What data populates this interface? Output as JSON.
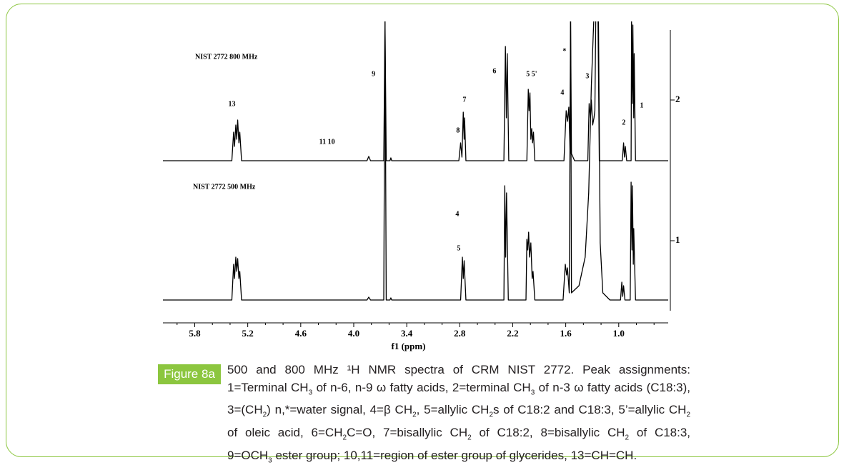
{
  "chart_data": [
    {
      "type": "line",
      "title": "NIST 2772 800 MHz",
      "trace_label": "2",
      "color": "#000000",
      "xlim": [
        6.16,
        0.44
      ],
      "ylim": [
        0,
        195
      ],
      "x": [
        6.16,
        5.38,
        5.36,
        5.35,
        5.335,
        5.325,
        5.314,
        5.3,
        5.29,
        5.27,
        3.85,
        3.83,
        3.81,
        3.66,
        3.646,
        3.632,
        3.59,
        3.58,
        3.57,
        2.81,
        2.79,
        2.775,
        2.76,
        2.75,
        2.745,
        2.73,
        2.3,
        2.283,
        2.272,
        2.262,
        2.245,
        2.04,
        2.024,
        2.015,
        2.005,
        1.995,
        1.985,
        1.975,
        1.965,
        1.95,
        1.62,
        1.595,
        1.58,
        1.565,
        1.55,
        1.545,
        1.535,
        1.5,
        1.35,
        1.335,
        1.32,
        1.31,
        1.295,
        1.28,
        1.27,
        1.26,
        1.235,
        1.22,
        0.96,
        0.945,
        0.935,
        0.925,
        0.91,
        0.86,
        0.855,
        0.845,
        0.84,
        0.83,
        0.825,
        0.81,
        0.44
      ],
      "values": [
        0,
        0,
        40,
        20,
        50,
        30,
        57,
        25,
        40,
        0,
        0,
        6,
        0,
        0,
        200,
        0,
        0,
        4,
        0,
        0,
        25,
        5,
        68,
        30,
        60,
        0,
        0,
        160,
        60,
        150,
        0,
        0,
        100,
        70,
        95,
        30,
        45,
        25,
        40,
        0,
        0,
        70,
        55,
        75,
        10,
        200,
        10,
        0,
        0,
        80,
        60,
        85,
        50,
        60,
        70,
        200,
        200,
        0,
        0,
        25,
        5,
        20,
        0,
        0,
        195,
        80,
        190,
        60,
        150,
        0,
        0
      ],
      "annotations": [
        {
          "text": "13",
          "x": 5.379,
          "y": 79
        },
        {
          "text": "11 10",
          "x": 4.302,
          "y": 26
        },
        {
          "text": "9",
          "x": 3.776,
          "y": 121
        },
        {
          "text": "7",
          "x": 2.747,
          "y": 85
        },
        {
          "text": "8",
          "x": 2.82,
          "y": 42
        },
        {
          "text": "6",
          "x": 2.407,
          "y": 125
        },
        {
          "text": "5 5'",
          "x": 1.986,
          "y": 121
        },
        {
          "text": "*",
          "x": 1.614,
          "y": 153
        },
        {
          "text": "4",
          "x": 1.638,
          "y": 95
        },
        {
          "text": "3",
          "x": 1.355,
          "y": 118
        },
        {
          "text": "2",
          "x": 0.943,
          "y": 53
        },
        {
          "text": "1",
          "x": 0.739,
          "y": 77
        }
      ]
    },
    {
      "type": "line",
      "title": "NIST 2772 500 MHz",
      "trace_label": "1",
      "color": "#000000",
      "xlim": [
        6.16,
        0.44
      ],
      "ylim": [
        0,
        390
      ],
      "x": [
        6.16,
        5.38,
        5.36,
        5.35,
        5.335,
        5.325,
        5.314,
        5.3,
        5.29,
        5.27,
        3.85,
        3.83,
        3.81,
        3.66,
        3.646,
        3.632,
        3.59,
        3.58,
        3.57,
        2.79,
        2.77,
        2.76,
        2.75,
        2.73,
        2.3,
        2.29,
        2.28,
        2.27,
        2.25,
        2.05,
        2.04,
        2.03,
        2.02,
        2.01,
        1.995,
        1.98,
        1.97,
        1.95,
        1.63,
        1.605,
        1.59,
        1.58,
        1.56,
        1.545,
        1.535,
        1.45,
        1.38,
        1.34,
        1.31,
        1.28,
        1.23,
        1.21,
        1.18,
        1.1,
        0.98,
        0.965,
        0.955,
        0.945,
        0.93,
        0.87,
        0.86,
        0.85,
        0.845,
        0.835,
        0.83,
        0.81,
        0.44
      ],
      "values": [
        0,
        0,
        50,
        30,
        60,
        40,
        58,
        30,
        40,
        0,
        0,
        4,
        0,
        0,
        400,
        0,
        0,
        3,
        0,
        0,
        60,
        30,
        55,
        0,
        0,
        160,
        60,
        150,
        0,
        0,
        85,
        70,
        95,
        60,
        80,
        30,
        40,
        0,
        0,
        50,
        35,
        45,
        10,
        400,
        10,
        20,
        60,
        150,
        300,
        400,
        400,
        80,
        10,
        0,
        0,
        25,
        5,
        20,
        0,
        0,
        165,
        70,
        160,
        50,
        100,
        0,
        0
      ],
      "annotations": [
        {
          "text": "4",
          "x": 2.828,
          "y": 120
        },
        {
          "text": "5",
          "x": 2.812,
          "y": 72
        }
      ],
      "xlabel": "f1 (ppm)",
      "xticks": [
        5.8,
        5.2,
        4.6,
        {
          "value": 4,
          "label": "4.0"
        },
        3.4,
        2.8,
        2.2,
        1.6,
        {
          "value": 1,
          "label": "1.0"
        }
      ],
      "xminorticks": [
        6.0,
        5.6,
        5.4,
        5.0,
        4.8,
        4.4,
        4.2,
        3.8,
        3.6,
        3.2,
        3.0,
        2.6,
        2.4,
        2.0,
        1.8,
        1.4,
        1.2,
        0.8,
        0.6
      ]
    }
  ],
  "figure_label": "Figure 8a",
  "caption": [
    "500 and 800 MHz ¹H NMR spectra of CRM NIST 2772. Peak assignments: 1=Terminal CH",
    {
      "sub": "3"
    },
    " of n-6, n-9 ω fatty acids, 2=terminal CH",
    {
      "sub": "3"
    },
    " of n-3 ω fatty acids (C18:3), 3=(CH",
    {
      "sub": "2"
    },
    ") n,*=water signal, 4=β CH",
    {
      "sub": "2"
    },
    ", 5=allylic  CH",
    {
      "sub": "2"
    },
    "s of C18:2 and C18:3, 5’=allylic CH",
    {
      "sub": "2"
    },
    " of oleic acid, 6=CH",
    {
      "sub": "2"
    },
    "C=O, 7=bisallylic CH",
    {
      "sub": "2"
    },
    " of C18:2, 8=bisallylic CH",
    {
      "sub": "2"
    },
    " of C18:3, 9=OCH",
    {
      "sub": "3"
    },
    " ester group; 10,11=region of ester group of glycerides, 13=CH=CH."
  ]
}
